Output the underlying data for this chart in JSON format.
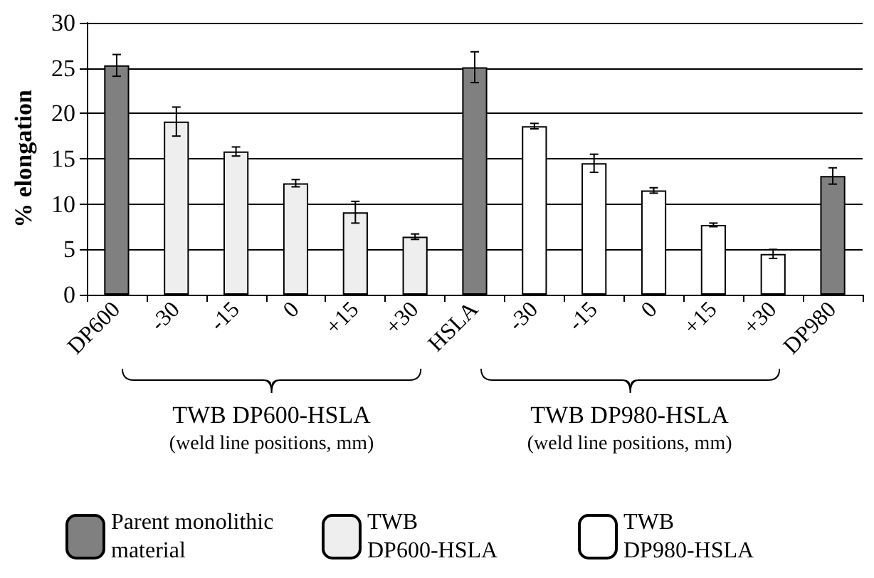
{
  "chart_data": {
    "type": "bar",
    "ylabel": "% elongation",
    "categories": [
      "DP600",
      "-30",
      "-15",
      "0",
      "+15",
      "+30",
      "HSLA",
      "-30",
      "-15",
      "0",
      "+15",
      "+30",
      "DP980"
    ],
    "series": [
      {
        "name": "Parent monolithic material",
        "color": "#808080",
        "values": [
          25.3,
          null,
          null,
          null,
          null,
          null,
          25.1,
          null,
          null,
          null,
          null,
          null,
          13.1
        ],
        "errors": [
          1.2,
          null,
          null,
          null,
          null,
          null,
          1.7,
          null,
          null,
          null,
          null,
          null,
          0.9
        ]
      },
      {
        "name": "TWB DP600-HSLA",
        "color": "#eeeeee",
        "values": [
          null,
          19.1,
          15.8,
          12.3,
          9.1,
          6.4,
          null,
          null,
          null,
          null,
          null,
          null,
          null
        ],
        "errors": [
          null,
          1.6,
          0.5,
          0.4,
          1.2,
          0.3,
          null,
          null,
          null,
          null,
          null,
          null,
          null
        ]
      },
      {
        "name": "TWB DP980-HSLA",
        "color": "#ffffff",
        "values": [
          null,
          null,
          null,
          null,
          null,
          null,
          null,
          18.6,
          14.5,
          11.5,
          7.7,
          4.5,
          null
        ],
        "errors": [
          null,
          null,
          null,
          null,
          null,
          null,
          null,
          0.3,
          1.0,
          0.3,
          0.2,
          0.5,
          null
        ]
      }
    ],
    "annotations": [
      "TWB DP600-HSLA\n(weld line positions, mm)",
      "TWB DP980-HSLA\n(weld line positions, mm)"
    ],
    "ylim": [
      0,
      30
    ],
    "yticks": [
      0,
      5,
      10,
      15,
      20,
      25,
      30
    ],
    "grid": "y",
    "legend": "bottom"
  }
}
